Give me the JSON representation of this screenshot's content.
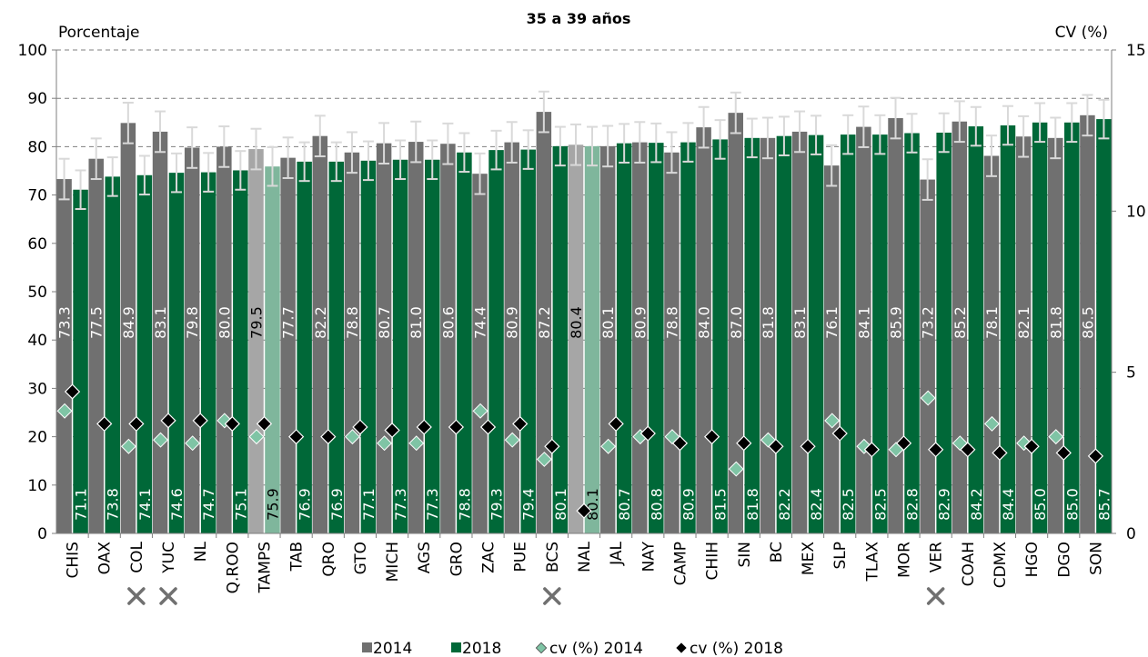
{
  "chart_data": {
    "type": "bar",
    "title": "35 a 39 años",
    "ylabel_left": "Porcentaje",
    "ylabel_right": "CV (%)",
    "ylim": [
      0,
      100
    ],
    "y2lim": [
      0,
      15
    ],
    "yticks": [
      "0",
      "10",
      "20",
      "30",
      "40",
      "50",
      "60",
      "70",
      "80",
      "90",
      "100"
    ],
    "y2ticks": [
      "0",
      "5",
      "10",
      "15"
    ],
    "grid": "dashed horizontal",
    "legend_position": "bottom",
    "categories": [
      "CHIS",
      "OAX",
      "COL",
      "YUC",
      "NL",
      "Q.ROO",
      "TAMPS",
      "TAB",
      "QRO",
      "GTO",
      "MICH",
      "AGS",
      "GRO",
      "ZAC",
      "PUE",
      "BCS",
      "NAL",
      "JAL",
      "NAY",
      "CAMP",
      "CHIH",
      "SIN",
      "BC",
      "MEX",
      "SLP",
      "TLAX",
      "MOR",
      "VER",
      "COAH",
      "CDMX",
      "HGO",
      "DGO",
      "SON"
    ],
    "marked_categories": [
      "COL",
      "YUC",
      "BCS",
      "VER"
    ],
    "highlight_categories": [
      "TAMPS",
      "NAL"
    ],
    "series": [
      {
        "name": "2014",
        "axis": "left",
        "kind": "bar",
        "values": [
          73.3,
          77.5,
          84.9,
          83.1,
          79.8,
          80.0,
          79.5,
          77.7,
          82.2,
          78.8,
          80.7,
          81.0,
          80.6,
          74.4,
          80.9,
          87.2,
          80.4,
          80.1,
          80.9,
          78.8,
          84.0,
          87.0,
          81.8,
          83.1,
          76.1,
          84.1,
          85.9,
          73.2,
          85.2,
          78.1,
          82.1,
          81.8,
          86.5
        ],
        "labels": [
          "73.3",
          "77.5",
          "84.9",
          "83.1",
          "79.8",
          "80.0",
          "79.5",
          "77.7",
          "82.2",
          "78.8",
          "80.7",
          "81.0",
          "80.6",
          "74.4",
          "80.9",
          "87.2",
          "80.4",
          "80.1",
          "80.9",
          "78.8",
          "84.0",
          "87.0",
          "81.8",
          "83.1",
          "76.1",
          "84.1",
          "85.9",
          "73.2",
          "85.2",
          "78.1",
          "82.1",
          "81.8",
          "86.5"
        ],
        "error": 4.2
      },
      {
        "name": "2018",
        "axis": "left",
        "kind": "bar",
        "values": [
          71.1,
          73.8,
          74.1,
          74.6,
          74.7,
          75.1,
          75.9,
          76.9,
          76.9,
          77.1,
          77.3,
          77.3,
          78.8,
          79.3,
          79.4,
          80.1,
          80.1,
          80.7,
          80.8,
          80.9,
          81.5,
          81.8,
          82.2,
          82.4,
          82.5,
          82.5,
          82.8,
          82.9,
          84.2,
          84.4,
          85.0,
          85.0,
          85.7
        ],
        "labels": [
          "71.1",
          "73.8",
          "74.1",
          "74.6",
          "74.7",
          "75.1",
          "75.9",
          "76.9",
          "76.9",
          "77.1",
          "77.3",
          "77.3",
          "78.8",
          "79.3",
          "79.4",
          "80.1",
          "80.1",
          "80.7",
          "80.8",
          "80.9",
          "81.5",
          "81.8",
          "82.2",
          "82.4",
          "82.5",
          "82.5",
          "82.8",
          "82.9",
          "84.2",
          "84.4",
          "85.0",
          "85.0",
          "85.7"
        ],
        "error": 4.0
      },
      {
        "name": "cv (%) 2014",
        "axis": "right",
        "kind": "marker",
        "values": [
          3.8,
          null,
          2.7,
          2.9,
          2.8,
          3.5,
          3.0,
          null,
          null,
          3.0,
          2.8,
          2.8,
          null,
          3.8,
          2.9,
          2.3,
          null,
          2.7,
          3.0,
          3.0,
          null,
          2.0,
          2.9,
          null,
          3.5,
          2.7,
          2.6,
          4.2,
          2.8,
          3.4,
          2.8,
          3.0,
          null
        ]
      },
      {
        "name": "cv (%) 2018",
        "axis": "right",
        "kind": "marker",
        "values": [
          4.4,
          3.4,
          3.4,
          3.5,
          3.5,
          3.4,
          3.4,
          3.0,
          3.0,
          3.3,
          3.2,
          3.3,
          3.3,
          3.3,
          3.4,
          2.7,
          0.7,
          3.4,
          3.1,
          2.8,
          3.0,
          2.8,
          2.7,
          2.7,
          3.1,
          2.6,
          2.8,
          2.6,
          2.6,
          2.5,
          2.7,
          2.5,
          2.4
        ]
      }
    ],
    "colors": {
      "bar_2014": "#707070",
      "bar_2018": "#006838",
      "bar_2014_highlight": "#a6a6a6",
      "bar_2018_highlight": "#7fb69c",
      "cv_2014": "#7fc4a5",
      "cv_2018": "#000000",
      "errorbar": "#d9d9d9",
      "grid": "#7f7f7f",
      "marker_x": "#707070"
    }
  },
  "legend": {
    "items": [
      {
        "label": "2014"
      },
      {
        "label": "2018"
      },
      {
        "label": "cv (%) 2014"
      },
      {
        "label": "cv (%) 2018"
      }
    ]
  }
}
